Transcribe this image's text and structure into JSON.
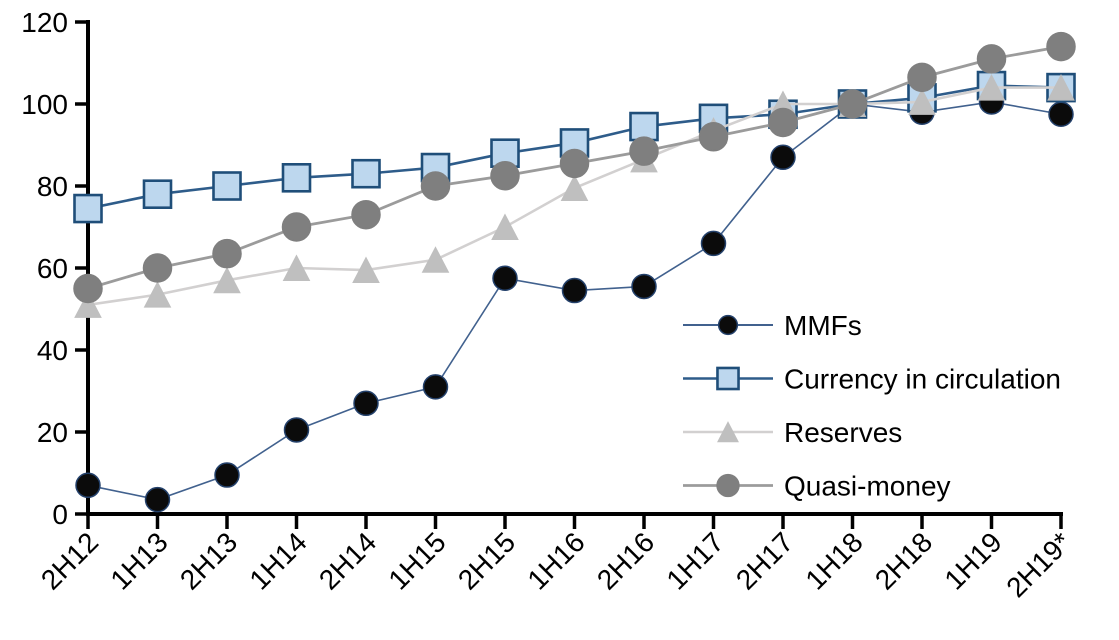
{
  "chart_data": {
    "type": "line",
    "title": "",
    "xlabel": "",
    "ylabel": "",
    "ylim": [
      0,
      120
    ],
    "yticks": [
      0,
      20,
      40,
      60,
      80,
      100,
      120
    ],
    "grid": false,
    "legend_position": "inside-right",
    "categories": [
      "2H12",
      "1H13",
      "2H13",
      "1H14",
      "2H14",
      "1H15",
      "2H15",
      "1H16",
      "2H16",
      "1H17",
      "2H17",
      "1H18",
      "2H18",
      "1H19",
      "2H19*"
    ],
    "series": [
      {
        "name": "MMFs",
        "marker": "circle",
        "marker_fill": "#0b0b0b",
        "marker_stroke": "#24416b",
        "line_color": "#41618e",
        "line_width": 1.6,
        "marker_size": 24,
        "values": [
          7,
          3.5,
          9.5,
          20.5,
          27,
          31,
          57.5,
          54.5,
          55.5,
          66,
          87,
          100,
          98,
          100.5,
          97.5
        ]
      },
      {
        "name": "Currency in circulation",
        "marker": "square",
        "marker_fill": "#bdd7ee",
        "marker_stroke": "#1f4e79",
        "line_color": "#2e5c8a",
        "line_width": 2.6,
        "marker_size": 27,
        "values": [
          74.5,
          78,
          80,
          82,
          83,
          84.5,
          88,
          90.5,
          94.5,
          96.5,
          97.5,
          100,
          101.5,
          104.5,
          104
        ]
      },
      {
        "name": "Reserves",
        "marker": "triangle",
        "marker_fill": "#bfbfbf",
        "marker_stroke": "#bfbfbf",
        "line_color": "#d2d0d0",
        "line_width": 2.6,
        "marker_size": 26,
        "values": [
          51,
          53.5,
          57,
          60,
          59.5,
          62,
          70,
          79.5,
          86.5,
          93.5,
          100,
          100,
          100.5,
          104,
          104
        ]
      },
      {
        "name": "Quasi-money",
        "marker": "circle",
        "marker_fill": "#7f7f7f",
        "marker_stroke": "#7f7f7f",
        "line_color": "#9b9b9b",
        "line_width": 2.8,
        "marker_size": 28,
        "values": [
          55,
          60,
          63.5,
          70,
          73,
          80,
          82.5,
          85.5,
          88.5,
          92,
          95.5,
          100,
          106.5,
          111,
          114
        ]
      }
    ],
    "axis_color": "#000000"
  }
}
